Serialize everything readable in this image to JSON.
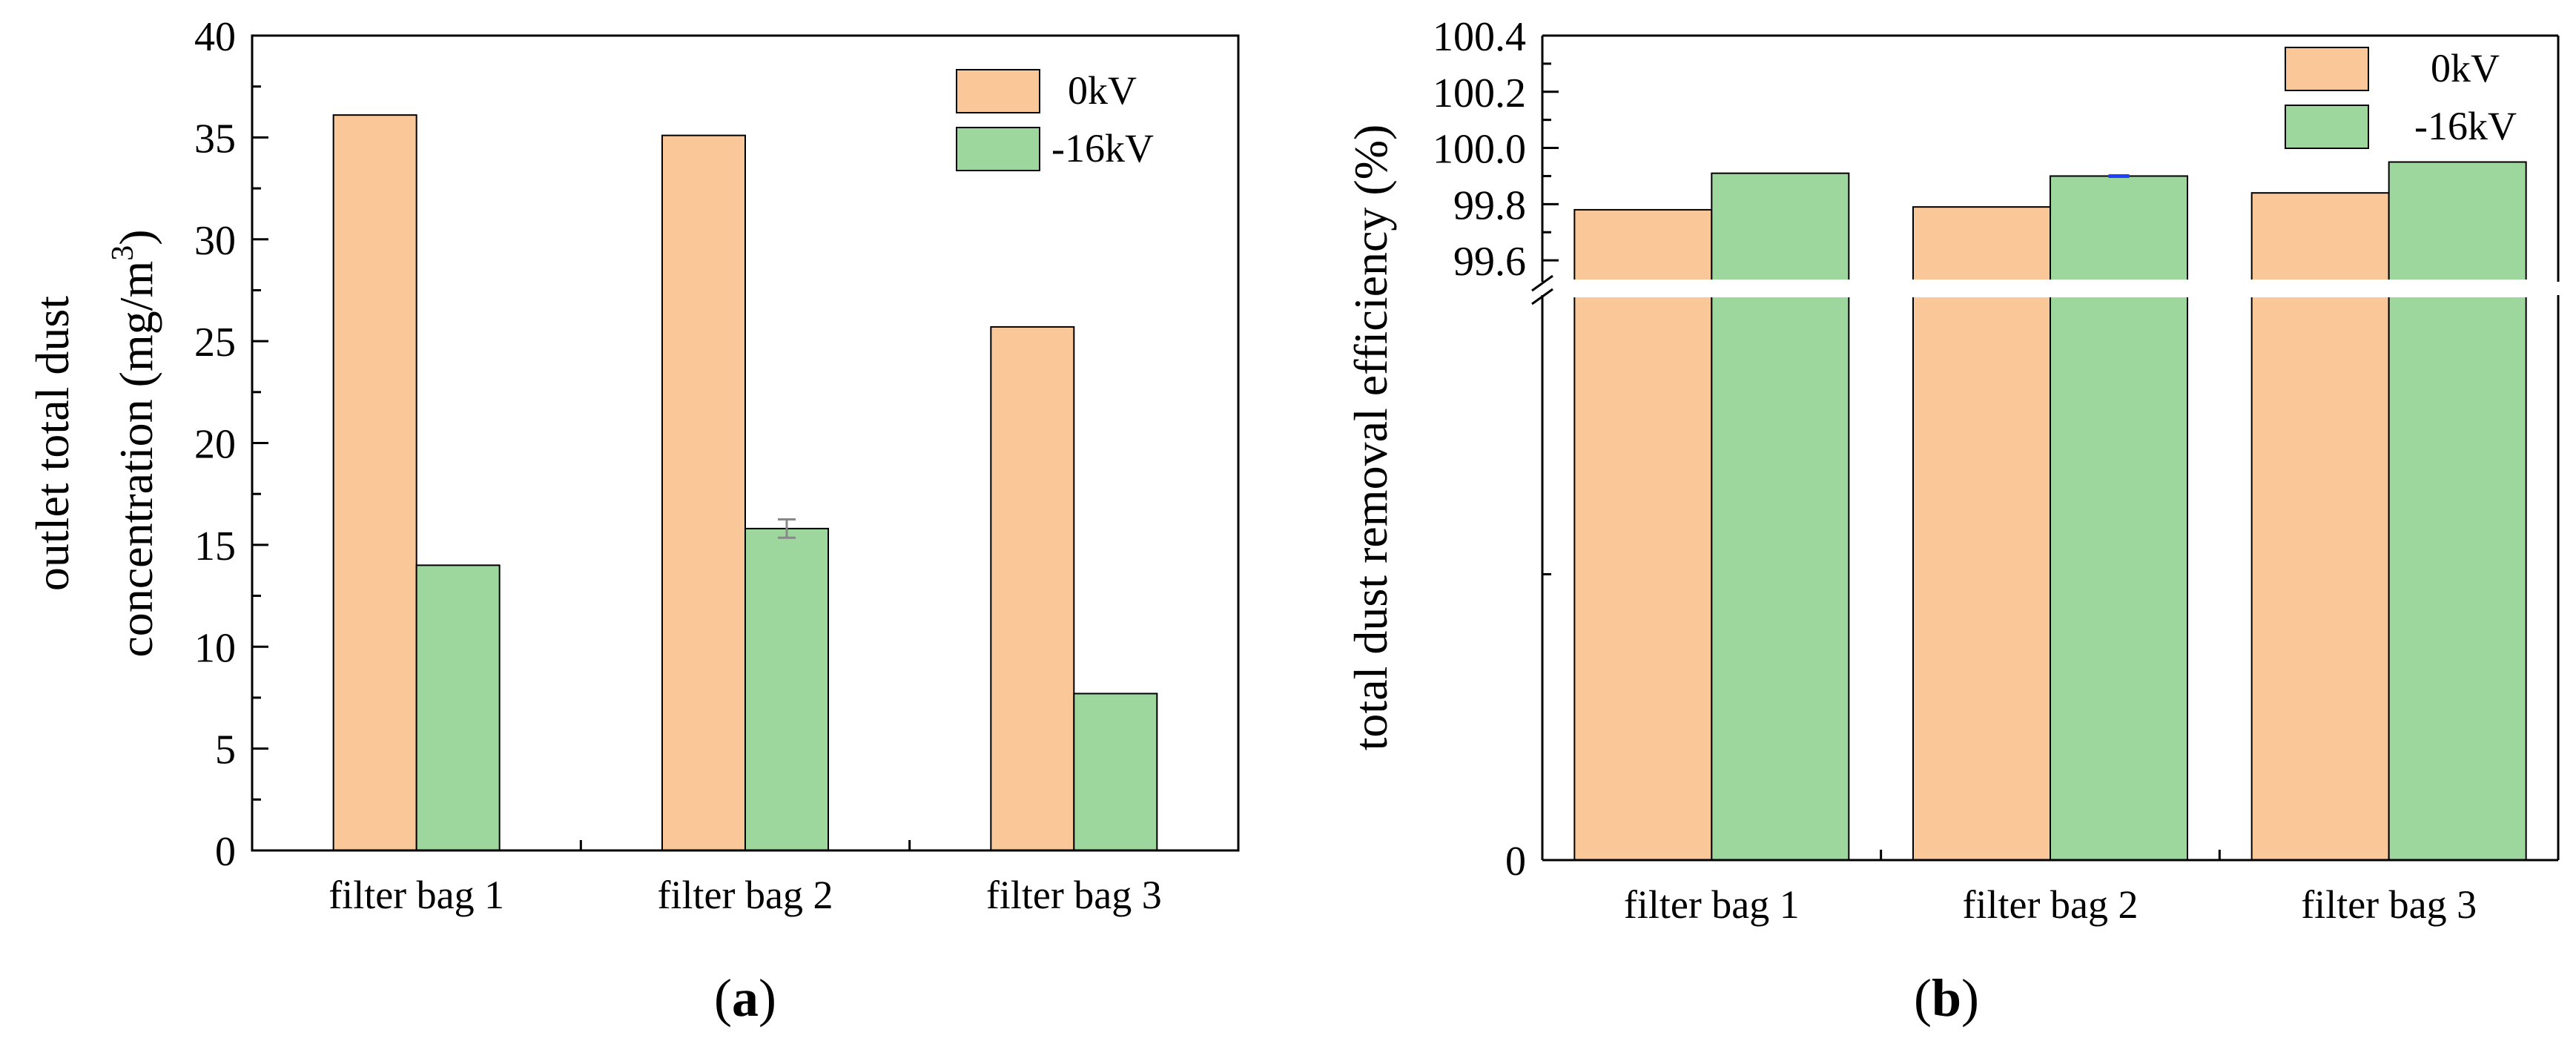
{
  "colors": {
    "zero_kv": "#fac898",
    "minus16_kv": "#9dd79d",
    "errorbar_a": "#888888",
    "errorbar_b": "#1f3fff"
  },
  "chart_data": [
    {
      "type": "bar",
      "panel": "(a)",
      "panel_letter": "a",
      "title": "",
      "xlabel": "",
      "ylabel_line1": "outlet total dust",
      "ylabel_line2": "concentration (mg/m",
      "ylabel_sup": "3",
      "ylabel_close": ")",
      "categories": [
        "filter bag 1",
        "filter bag 2",
        "filter bag 3"
      ],
      "series": [
        {
          "name": "0kV",
          "values": [
            36.1,
            35.1,
            25.7
          ],
          "error": [
            0,
            0,
            0
          ]
        },
        {
          "name": "-16kV",
          "values": [
            14.0,
            15.8,
            7.7
          ],
          "error": [
            0,
            0.45,
            0
          ]
        }
      ],
      "ylim": [
        0,
        40
      ],
      "yticks": [
        "0",
        "5",
        "10",
        "15",
        "20",
        "25",
        "30",
        "35",
        "40"
      ],
      "legend_position": "top-right"
    },
    {
      "type": "bar",
      "panel": "(b)",
      "panel_letter": "b",
      "title": "",
      "xlabel": "",
      "ylabel": "total dust removal efficiency (%)",
      "categories": [
        "filter bag 1",
        "filter bag 2",
        "filter bag 3"
      ],
      "series": [
        {
          "name": "0kV",
          "values": [
            99.78,
            99.79,
            99.84
          ],
          "error": [
            0,
            0,
            0
          ]
        },
        {
          "name": "-16kV",
          "values": [
            99.91,
            99.9,
            99.95
          ],
          "error": [
            0,
            0.005,
            0
          ]
        }
      ],
      "axis_break": true,
      "lower_segment_ylim": [
        0,
        99.5
      ],
      "upper_segment_ylim": [
        99.5,
        100.4
      ],
      "yticks_lower": [
        "0"
      ],
      "yticks_upper": [
        "99.6",
        "99.8",
        "100.0",
        "100.2",
        "100.4"
      ],
      "legend_position": "top-right"
    }
  ]
}
